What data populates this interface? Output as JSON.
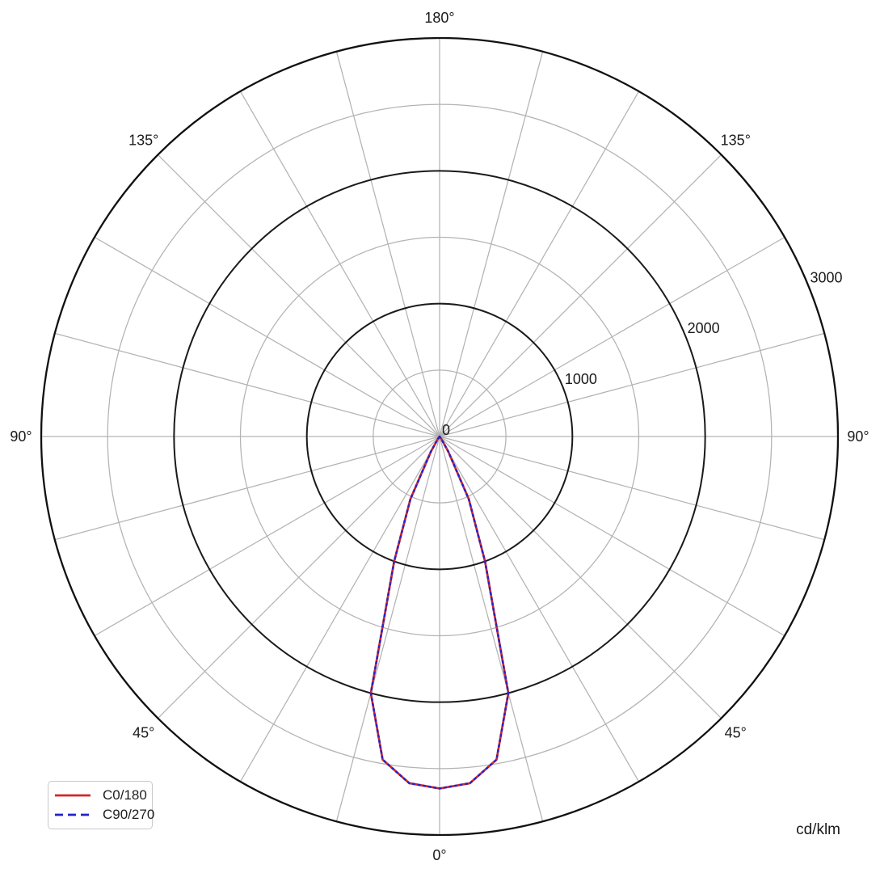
{
  "chart_data": {
    "type": "polar_line",
    "description": "Luminous intensity distribution polar diagram",
    "units_label": "cd/klm",
    "angular_axis": {
      "zero_location": "bottom",
      "grid_step_deg": 15,
      "tick_labels": [
        {
          "text": "0°",
          "angle_deg": 0,
          "side": "center"
        },
        {
          "text": "45°",
          "angle_deg": 45,
          "side": "left"
        },
        {
          "text": "45°",
          "angle_deg": 45,
          "side": "right"
        },
        {
          "text": "90°",
          "angle_deg": 90,
          "side": "left"
        },
        {
          "text": "90°",
          "angle_deg": 90,
          "side": "right"
        },
        {
          "text": "135°",
          "angle_deg": 135,
          "side": "left"
        },
        {
          "text": "135°",
          "angle_deg": 135,
          "side": "right"
        },
        {
          "text": "180°",
          "angle_deg": 180,
          "side": "center"
        }
      ]
    },
    "radial_axis": {
      "min": 0,
      "max": 3000,
      "grid_step": 500,
      "major_step": 1000,
      "label_angle_deg": 22.5,
      "tick_labels": [
        {
          "text": "0",
          "value": 0
        },
        {
          "text": "1000",
          "value": 1000
        },
        {
          "text": "2000",
          "value": 2000
        },
        {
          "text": "3000",
          "value": 3000
        }
      ]
    },
    "series": [
      {
        "name": "C0/180",
        "color": "#d42525",
        "line_style": "solid",
        "angles_deg": [
          0,
          5,
          10,
          15,
          20,
          25,
          30,
          35,
          40,
          45,
          50,
          55,
          60,
          65,
          70,
          75,
          80,
          85,
          90,
          95,
          100,
          105,
          110,
          115,
          120,
          125,
          130,
          135,
          140,
          145,
          150,
          155,
          160,
          165,
          170,
          175,
          180
        ],
        "values": [
          2650,
          2620,
          2470,
          2000,
          1000,
          520,
          130,
          25,
          0,
          0,
          0,
          0,
          0,
          0,
          0,
          0,
          0,
          0,
          0,
          0,
          0,
          0,
          0,
          0,
          0,
          0,
          0,
          0,
          0,
          0,
          0,
          0,
          0,
          0,
          0,
          0,
          0
        ]
      },
      {
        "name": "C90/270",
        "color": "#2424c8",
        "line_style": "dashed",
        "angles_deg": [
          0,
          5,
          10,
          15,
          20,
          25,
          30,
          35,
          40,
          45,
          50,
          55,
          60,
          65,
          70,
          75,
          80,
          85,
          90,
          95,
          100,
          105,
          110,
          115,
          120,
          125,
          130,
          135,
          140,
          145,
          150,
          155,
          160,
          165,
          170,
          175,
          180
        ],
        "values": [
          2650,
          2620,
          2470,
          2000,
          1000,
          520,
          130,
          25,
          0,
          0,
          0,
          0,
          0,
          0,
          0,
          0,
          0,
          0,
          0,
          0,
          0,
          0,
          0,
          0,
          0,
          0,
          0,
          0,
          0,
          0,
          0,
          0,
          0,
          0,
          0,
          0,
          0
        ]
      }
    ],
    "legend": {
      "position": "bottom-left"
    },
    "colors": {
      "grid_minor": "#b3b3b3",
      "grid_major": "#1a1a1a",
      "outer_ring": "#111111",
      "text": "#1a1a1a",
      "background": "#ffffff"
    }
  }
}
